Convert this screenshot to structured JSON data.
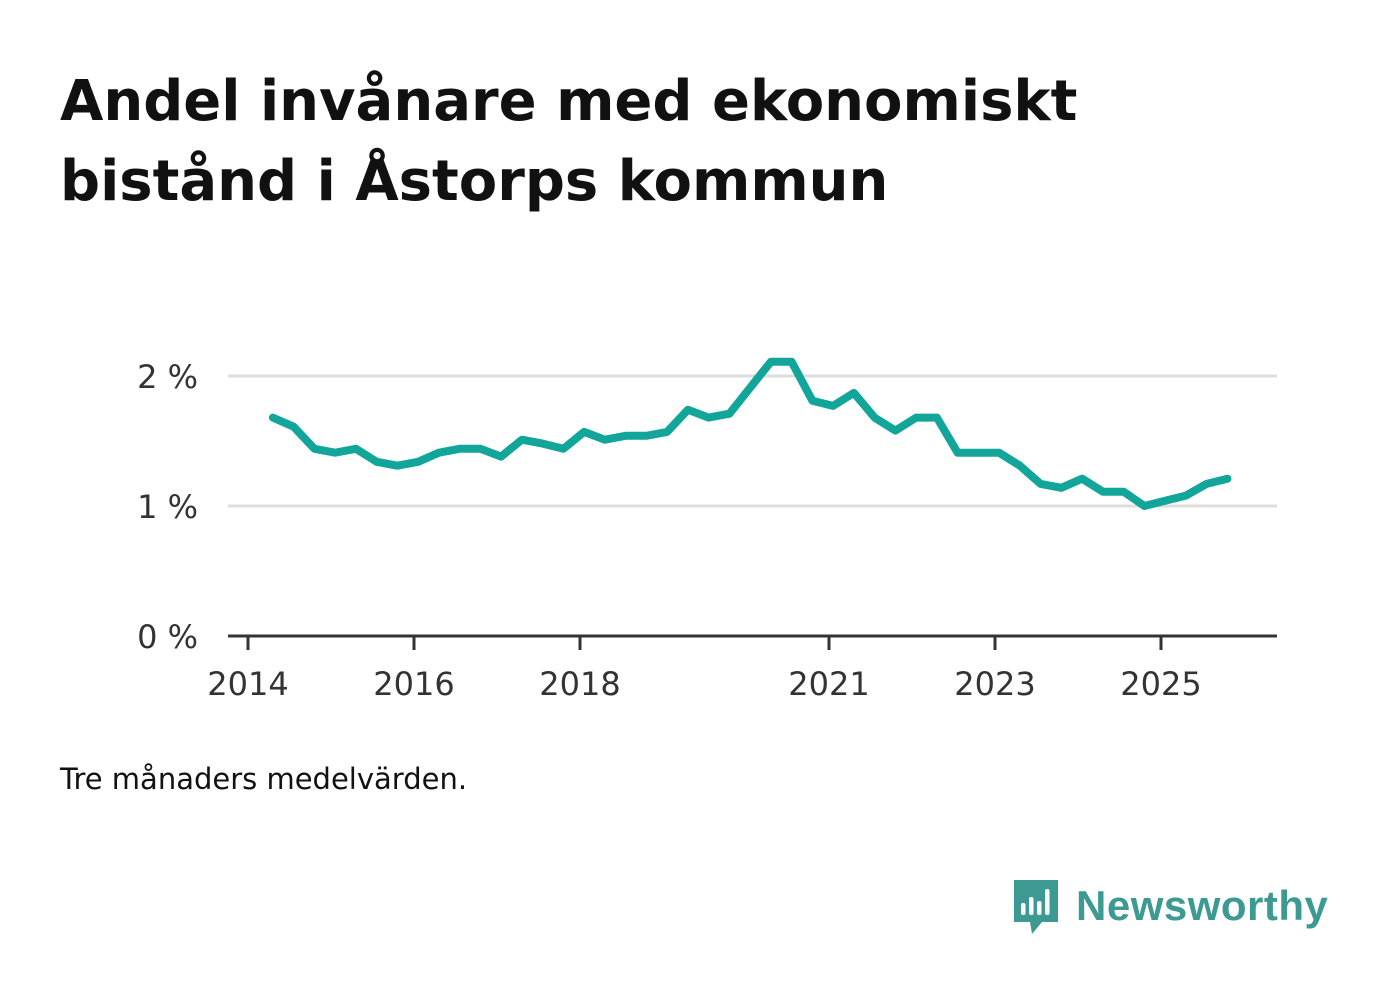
{
  "title": "Andel invånare med ekonomiskt bistånd i Åstorps kommun",
  "note": "Tre månaders medelvärden.",
  "brand": "Newsworthy",
  "colors": {
    "line": "#12a59a",
    "grid": "#dddddd",
    "axis": "#333333",
    "brand": "#3d9a92"
  },
  "chart_data": {
    "type": "line",
    "title": "Andel invånare med ekonomiskt bistånd i Åstorps kommun",
    "xlabel": "",
    "ylabel": "",
    "x_ticks": [
      2014,
      2016,
      2018,
      2021,
      2023,
      2025
    ],
    "y_ticks": [
      {
        "value": 0,
        "label": "0 %"
      },
      {
        "value": 1,
        "label": "1 %"
      },
      {
        "value": 2,
        "label": "2 %"
      }
    ],
    "xlim": [
      2014.0,
      2026.4
    ],
    "ylim": [
      0,
      2
    ],
    "grid": true,
    "series": [
      {
        "name": "Andel invånare med ekonomiskt bistånd",
        "x": [
          2014.3,
          2014.55,
          2014.8,
          2015.05,
          2015.3,
          2015.55,
          2015.8,
          2016.05,
          2016.3,
          2016.55,
          2016.8,
          2017.05,
          2017.3,
          2017.55,
          2017.8,
          2018.05,
          2018.3,
          2018.55,
          2018.8,
          2019.05,
          2019.3,
          2019.55,
          2019.8,
          2020.05,
          2020.3,
          2020.55,
          2020.8,
          2021.05,
          2021.3,
          2021.55,
          2021.8,
          2022.05,
          2022.3,
          2022.55,
          2022.8,
          2023.05,
          2023.3,
          2023.55,
          2023.8,
          2024.05,
          2024.3,
          2024.55,
          2024.8,
          2025.05,
          2025.3,
          2025.55,
          2025.8
        ],
        "values": [
          1.68,
          1.61,
          1.44,
          1.41,
          1.44,
          1.34,
          1.31,
          1.34,
          1.41,
          1.44,
          1.44,
          1.38,
          1.51,
          1.48,
          1.44,
          1.57,
          1.51,
          1.54,
          1.54,
          1.57,
          1.74,
          1.68,
          1.71,
          1.91,
          2.11,
          2.11,
          1.81,
          1.77,
          1.87,
          1.68,
          1.58,
          1.68,
          1.68,
          1.41,
          1.41,
          1.41,
          1.31,
          1.17,
          1.14,
          1.21,
          1.11,
          1.11,
          1.0,
          1.04,
          1.08,
          1.17,
          1.21
        ]
      }
    ]
  }
}
